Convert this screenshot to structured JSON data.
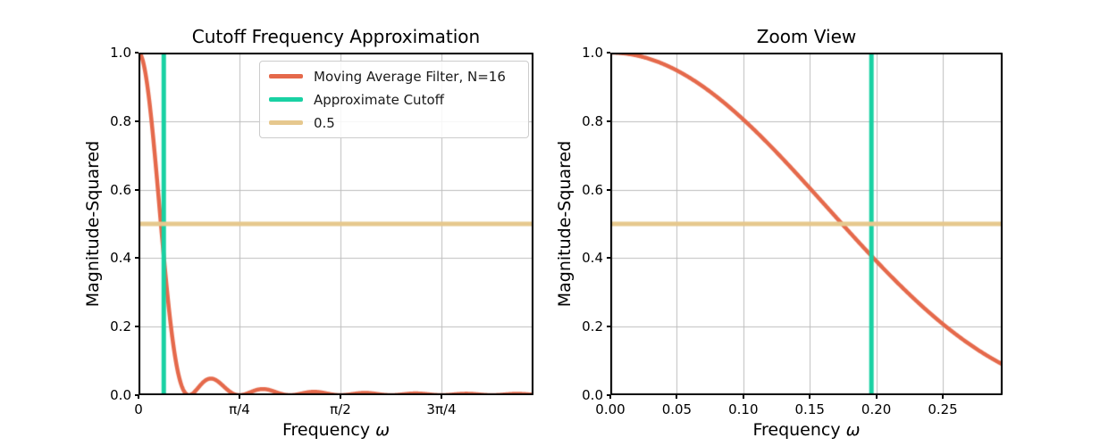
{
  "figure": {
    "background": "#ffffff",
    "grid_color": "#bdbdbd",
    "spine_color": "#000000"
  },
  "chart_data": [
    {
      "type": "line",
      "title": "Cutoff Frequency Approximation",
      "xlabel": "Frequency ω",
      "ylabel": "Magnitude-Squared",
      "xlim": [
        0,
        3.072
      ],
      "ylim": [
        0,
        1
      ],
      "grid": true,
      "xticks": [
        {
          "v": 0,
          "label": "0"
        },
        {
          "v": 0.7853981633974483,
          "label": "π/4"
        },
        {
          "v": 1.5707963267948966,
          "label": "π/2"
        },
        {
          "v": 2.356194490192345,
          "label": "3π/4"
        }
      ],
      "yticks": [
        {
          "v": 0.0,
          "label": "0.0"
        },
        {
          "v": 0.2,
          "label": "0.2"
        },
        {
          "v": 0.4,
          "label": "0.4"
        },
        {
          "v": 0.6,
          "label": "0.6"
        },
        {
          "v": 0.8,
          "label": "0.8"
        },
        {
          "v": 1.0,
          "label": "1.0"
        }
      ],
      "series": [
        {
          "kind": "curve",
          "name": "Moving Average Filter, N=16",
          "generator": "moving_average_mag2",
          "N": 16,
          "samples": 900,
          "color": "#e5694b",
          "linewidth": 4.5
        },
        {
          "kind": "vline",
          "name": "Approximate Cutoff",
          "x": 0.19634954084936207,
          "color": "#19d1a3",
          "linewidth": 5
        },
        {
          "kind": "hline",
          "name": "0.5",
          "y": 0.5,
          "color": "#e6c88e",
          "linewidth": 5
        }
      ],
      "legend": {
        "visible": true
      }
    },
    {
      "type": "line",
      "title": "Zoom View",
      "xlabel": "Frequency ω",
      "ylabel": "Magnitude-Squared",
      "xlim": [
        0,
        0.295
      ],
      "ylim": [
        0,
        1
      ],
      "grid": true,
      "xticks": [
        {
          "v": 0.0,
          "label": "0.00"
        },
        {
          "v": 0.05,
          "label": "0.05"
        },
        {
          "v": 0.1,
          "label": "0.10"
        },
        {
          "v": 0.15,
          "label": "0.15"
        },
        {
          "v": 0.2,
          "label": "0.20"
        },
        {
          "v": 0.25,
          "label": "0.25"
        }
      ],
      "yticks": [
        {
          "v": 0.0,
          "label": "0.0"
        },
        {
          "v": 0.2,
          "label": "0.2"
        },
        {
          "v": 0.4,
          "label": "0.4"
        },
        {
          "v": 0.6,
          "label": "0.6"
        },
        {
          "v": 0.8,
          "label": "0.8"
        },
        {
          "v": 1.0,
          "label": "1.0"
        }
      ],
      "series": [
        {
          "kind": "curve",
          "name": "Moving Average Filter, N=16",
          "generator": "moving_average_mag2",
          "N": 16,
          "samples": 600,
          "color": "#e5694b",
          "linewidth": 4.5
        },
        {
          "kind": "vline",
          "name": "Approximate Cutoff",
          "x": 0.19634954084936207,
          "color": "#19d1a3",
          "linewidth": 5
        },
        {
          "kind": "hline",
          "name": "0.5",
          "y": 0.5,
          "color": "#e6c88e",
          "linewidth": 5
        }
      ],
      "legend": {
        "visible": false
      }
    }
  ]
}
